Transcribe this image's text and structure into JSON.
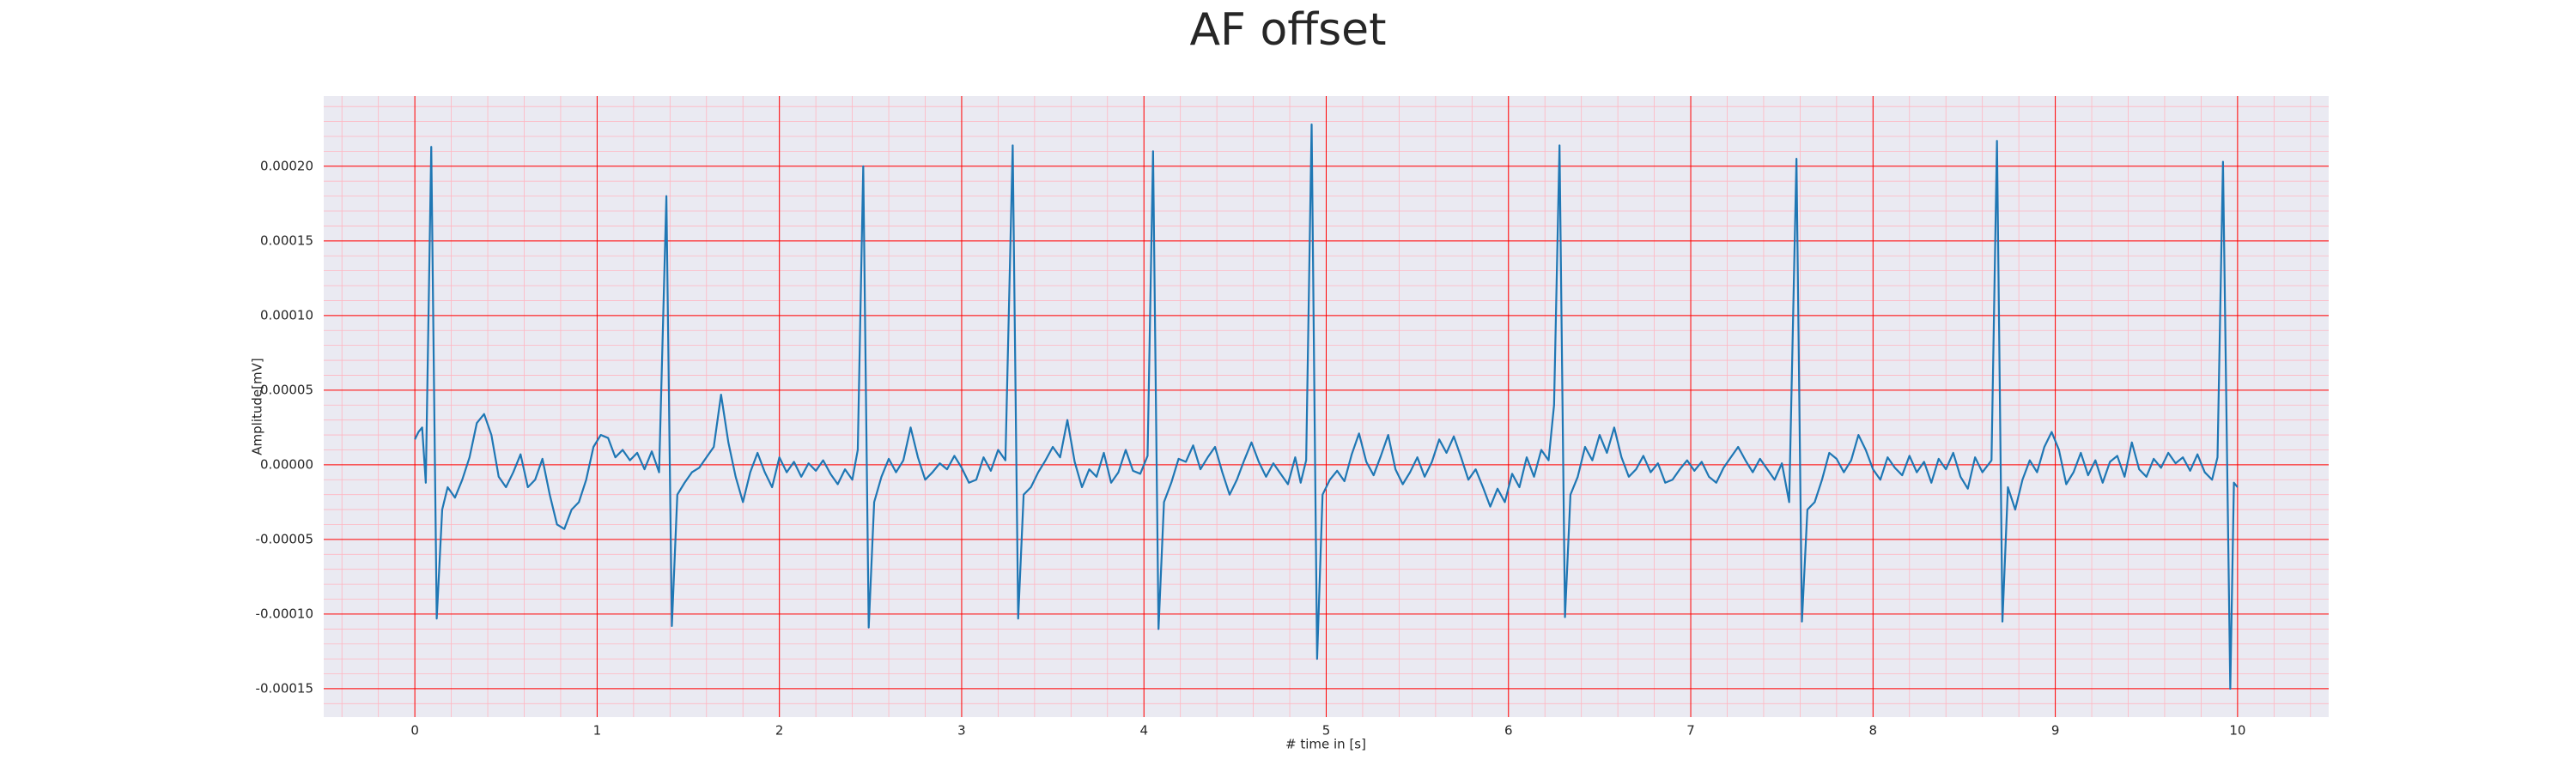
{
  "chart_data": {
    "type": "line",
    "title": "AF offset",
    "x_label": "# time in [s]",
    "y_label": "Amplitude[mV]",
    "xlim": [
      -0.5,
      10.5
    ],
    "ylim": [
      -0.000169,
      0.000247
    ],
    "xticks": [
      0,
      1,
      2,
      3,
      4,
      5,
      6,
      7,
      8,
      9,
      10
    ],
    "yticks": [
      -0.00015,
      {
        "value": -0.0001,
        "label": "-0.00010"
      },
      -5e-05,
      {
        "value": 0,
        "label": "0.00000"
      },
      5e-05,
      {
        "value": 0.0001,
        "label": "0.00010"
      },
      0.00015,
      {
        "value": 0.0002,
        "label": "0.00020"
      }
    ],
    "grid": true,
    "grid_color": "#ff0000",
    "minor_grid": {
      "color": "#ffb6c1",
      "divisions": 5
    },
    "background": "#eaeaf2",
    "color": "#1f77b4",
    "x": [
      0.0,
      0.02,
      0.04,
      0.06,
      0.09,
      0.12,
      0.15,
      0.18,
      0.22,
      0.26,
      0.3,
      0.34,
      0.38,
      0.42,
      0.46,
      0.5,
      0.54,
      0.58,
      0.62,
      0.66,
      0.7,
      0.74,
      0.78,
      0.82,
      0.86,
      0.9,
      0.94,
      0.98,
      1.02,
      1.06,
      1.1,
      1.14,
      1.18,
      1.22,
      1.26,
      1.3,
      1.34,
      1.38,
      1.41,
      1.44,
      1.48,
      1.52,
      1.56,
      1.6,
      1.64,
      1.68,
      1.72,
      1.76,
      1.8,
      1.84,
      1.88,
      1.92,
      1.96,
      2.0,
      2.04,
      2.08,
      2.12,
      2.16,
      2.2,
      2.24,
      2.28,
      2.32,
      2.36,
      2.4,
      2.43,
      2.46,
      2.49,
      2.52,
      2.56,
      2.6,
      2.64,
      2.68,
      2.72,
      2.76,
      2.8,
      2.84,
      2.88,
      2.92,
      2.96,
      3.0,
      3.04,
      3.08,
      3.12,
      3.16,
      3.2,
      3.24,
      3.28,
      3.31,
      3.34,
      3.38,
      3.42,
      3.46,
      3.5,
      3.54,
      3.58,
      3.62,
      3.66,
      3.7,
      3.74,
      3.78,
      3.82,
      3.86,
      3.9,
      3.94,
      3.98,
      4.02,
      4.05,
      4.08,
      4.11,
      4.15,
      4.19,
      4.23,
      4.27,
      4.31,
      4.35,
      4.39,
      4.43,
      4.47,
      4.51,
      4.55,
      4.59,
      4.63,
      4.67,
      4.71,
      4.75,
      4.79,
      4.83,
      4.86,
      4.89,
      4.92,
      4.95,
      4.98,
      5.02,
      5.06,
      5.1,
      5.14,
      5.18,
      5.22,
      5.26,
      5.3,
      5.34,
      5.38,
      5.42,
      5.46,
      5.5,
      5.54,
      5.58,
      5.62,
      5.66,
      5.7,
      5.74,
      5.78,
      5.82,
      5.86,
      5.9,
      5.94,
      5.98,
      6.02,
      6.06,
      6.1,
      6.14,
      6.18,
      6.22,
      6.25,
      6.28,
      6.31,
      6.34,
      6.38,
      6.42,
      6.46,
      6.5,
      6.54,
      6.58,
      6.62,
      6.66,
      6.7,
      6.74,
      6.78,
      6.82,
      6.86,
      6.9,
      6.94,
      6.98,
      7.02,
      7.06,
      7.1,
      7.14,
      7.18,
      7.22,
      7.26,
      7.3,
      7.34,
      7.38,
      7.42,
      7.46,
      7.5,
      7.54,
      7.58,
      7.61,
      7.64,
      7.68,
      7.72,
      7.76,
      7.8,
      7.84,
      7.88,
      7.92,
      7.96,
      8.0,
      8.04,
      8.08,
      8.12,
      8.16,
      8.2,
      8.24,
      8.28,
      8.32,
      8.36,
      8.4,
      8.44,
      8.48,
      8.52,
      8.56,
      8.6,
      8.65,
      8.68,
      8.71,
      8.74,
      8.78,
      8.82,
      8.86,
      8.9,
      8.94,
      8.98,
      9.02,
      9.06,
      9.1,
      9.14,
      9.18,
      9.22,
      9.26,
      9.3,
      9.34,
      9.38,
      9.42,
      9.46,
      9.5,
      9.54,
      9.58,
      9.62,
      9.66,
      9.7,
      9.74,
      9.78,
      9.82,
      9.86,
      9.89,
      9.92,
      9.96,
      9.98,
      10.0
    ],
    "values": [
      1.7e-05,
      2.2e-05,
      2.5e-05,
      -1.2e-05,
      0.000213,
      -0.000103,
      -3e-05,
      -1.5e-05,
      -2.2e-05,
      -1e-05,
      5e-06,
      2.8e-05,
      3.4e-05,
      2e-05,
      -8e-06,
      -1.5e-05,
      -5e-06,
      7e-06,
      -1.5e-05,
      -1e-05,
      4e-06,
      -2e-05,
      -4e-05,
      -4.3e-05,
      -3e-05,
      -2.5e-05,
      -1e-05,
      1.2e-05,
      2e-05,
      1.8e-05,
      5e-06,
      1e-05,
      3e-06,
      8e-06,
      -3e-06,
      9e-06,
      -5e-06,
      0.00018,
      -0.000108,
      -2e-05,
      -1.2e-05,
      -5e-06,
      -2e-06,
      5e-06,
      1.2e-05,
      4.7e-05,
      1.5e-05,
      -8e-06,
      -2.5e-05,
      -5e-06,
      8e-06,
      -5e-06,
      -1.5e-05,
      5e-06,
      -5e-06,
      2e-06,
      -8e-06,
      1e-06,
      -4e-06,
      3e-06,
      -6e-06,
      -1.3e-05,
      -3e-06,
      -1e-05,
      1e-05,
      0.0002,
      -0.000109,
      -2.5e-05,
      -8e-06,
      4e-06,
      -5e-06,
      3e-06,
      2.5e-05,
      5e-06,
      -1e-05,
      -5e-06,
      1e-06,
      -3e-06,
      6e-06,
      -2e-06,
      -1.2e-05,
      -1e-05,
      5e-06,
      -4e-06,
      1e-05,
      3e-06,
      0.000214,
      -0.000103,
      -2e-05,
      -1.5e-05,
      -5e-06,
      3e-06,
      1.2e-05,
      5e-06,
      3e-05,
      2e-06,
      -1.5e-05,
      -3e-06,
      -8e-06,
      8e-06,
      -1.2e-05,
      -5e-06,
      1e-05,
      -4e-06,
      -6e-06,
      6e-06,
      0.00021,
      -0.00011,
      -2.5e-05,
      -1.2e-05,
      4e-06,
      2e-06,
      1.3e-05,
      -3e-06,
      5e-06,
      1.2e-05,
      -5e-06,
      -2e-05,
      -1e-05,
      3e-06,
      1.5e-05,
      2e-06,
      -8e-06,
      1e-06,
      -6e-06,
      -1.3e-05,
      5e-06,
      -1.2e-05,
      3e-06,
      0.000228,
      -0.00013,
      -2e-05,
      -1e-05,
      -4e-06,
      -1.1e-05,
      7e-06,
      2.1e-05,
      2e-06,
      -7e-06,
      6e-06,
      2e-05,
      -3e-06,
      -1.3e-05,
      -5e-06,
      5e-06,
      -8e-06,
      2e-06,
      1.7e-05,
      8e-06,
      1.9e-05,
      5e-06,
      -1e-05,
      -3e-06,
      -1.5e-05,
      -2.8e-05,
      -1.6e-05,
      -2.5e-05,
      -6e-06,
      -1.5e-05,
      5e-06,
      -8e-06,
      1e-05,
      3e-06,
      4e-05,
      0.000214,
      -0.000102,
      -2e-05,
      -8e-06,
      1.2e-05,
      3e-06,
      2e-05,
      8e-06,
      2.5e-05,
      5e-06,
      -8e-06,
      -3e-06,
      6e-06,
      -5e-06,
      1e-06,
      -1.2e-05,
      -1e-05,
      -3e-06,
      3e-06,
      -4e-06,
      2e-06,
      -8e-06,
      -1.2e-05,
      -2e-06,
      5e-06,
      1.2e-05,
      3e-06,
      -5e-06,
      4e-06,
      -3e-06,
      -1e-05,
      1e-06,
      -2.5e-05,
      0.000205,
      -0.000105,
      -3e-05,
      -2.5e-05,
      -1e-05,
      8e-06,
      4e-06,
      -5e-06,
      3e-06,
      2e-05,
      1e-05,
      -3e-06,
      -1e-05,
      5e-06,
      -2e-06,
      -7e-06,
      6e-06,
      -5e-06,
      2e-06,
      -1.2e-05,
      4e-06,
      -3e-06,
      8e-06,
      -8e-06,
      -1.6e-05,
      5e-06,
      -5e-06,
      3e-06,
      0.000217,
      -0.000105,
      -1.5e-05,
      -3e-05,
      -1e-05,
      3e-06,
      -5e-06,
      1.2e-05,
      2.2e-05,
      1e-05,
      -1.3e-05,
      -5e-06,
      8e-06,
      -7e-06,
      3e-06,
      -1.2e-05,
      2e-06,
      6e-06,
      -8e-06,
      1.5e-05,
      -3e-06,
      -8e-06,
      4e-06,
      -2e-06,
      8e-06,
      1e-06,
      5e-06,
      -4e-06,
      7e-06,
      -5e-06,
      -1e-05,
      5e-06,
      0.000203,
      -0.00015,
      -1.2e-05,
      -1.5e-05
    ]
  }
}
